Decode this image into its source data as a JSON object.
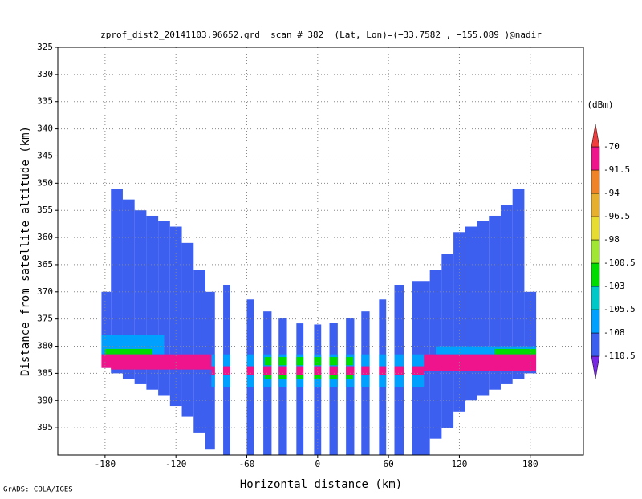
{
  "chart_data": {
    "type": "heatmap",
    "title": "zprof_dist2_20141103.96652.grd  scan # 382  (Lat, Lon)=(−33.7582 , −155.089 )@nadir",
    "xlabel": "Horizontal distance (km)",
    "ylabel": "Distance from satellite altitude (km)",
    "xlim": [
      -220,
      225
    ],
    "ylim": [
      325,
      400
    ],
    "xticks": [
      -180,
      -120,
      -60,
      0,
      60,
      120,
      180
    ],
    "yticks": [
      325,
      330,
      335,
      340,
      345,
      350,
      355,
      360,
      365,
      370,
      375,
      380,
      385,
      390,
      395
    ],
    "grid": true,
    "colorbar": {
      "label": "(dBm)",
      "levels": [
        -110.5,
        -108,
        -105.5,
        -103,
        -100.5,
        -98,
        -96.5,
        -94,
        -91.5,
        -70
      ],
      "colors": [
        "#7828e6",
        "#3c5ff0",
        "#00a0ff",
        "#00c8c8",
        "#00dc00",
        "#a0e632",
        "#e6dc32",
        "#e6af2d",
        "#f08228",
        "#f0148c",
        "#f03c3c"
      ]
    },
    "columns": [
      {
        "x": [
          -183,
          -175
        ],
        "y": [
          370,
          384
        ],
        "value": -109
      },
      {
        "x": [
          -175,
          -165
        ],
        "y": [
          351,
          385
        ],
        "value": -109
      },
      {
        "x": [
          -165,
          -155
        ],
        "y": [
          353,
          386
        ],
        "value": -109
      },
      {
        "x": [
          -155,
          -145
        ],
        "y": [
          355,
          387
        ],
        "value": -109
      },
      {
        "x": [
          -145,
          -135
        ],
        "y": [
          356,
          388
        ],
        "value": -109
      },
      {
        "x": [
          -135,
          -125
        ],
        "y": [
          357,
          389
        ],
        "value": -109
      },
      {
        "x": [
          -125,
          -115
        ],
        "y": [
          358,
          391
        ],
        "value": -109
      },
      {
        "x": [
          -115,
          -105
        ],
        "y": [
          361,
          393
        ],
        "value": -109
      },
      {
        "x": [
          -105,
          -95
        ],
        "y": [
          366,
          396
        ],
        "value": -109
      },
      {
        "x": [
          -95,
          -87
        ],
        "y": [
          370,
          399
        ],
        "value": -109
      },
      {
        "x": [
          -80,
          -74
        ],
        "y": [
          368.7,
          400
        ],
        "value": -109
      },
      {
        "x": [
          -60,
          -54
        ],
        "y": [
          371.4,
          400
        ],
        "value": -109
      },
      {
        "x": [
          -46,
          -39
        ],
        "y": [
          373.6,
          400
        ],
        "value": -109
      },
      {
        "x": [
          -33,
          -26
        ],
        "y": [
          374.9,
          400
        ],
        "value": -109
      },
      {
        "x": [
          -18,
          -12
        ],
        "y": [
          375.8,
          400
        ],
        "value": -109
      },
      {
        "x": [
          -3,
          3
        ],
        "y": [
          376,
          400
        ],
        "value": -109
      },
      {
        "x": [
          10,
          17
        ],
        "y": [
          375.7,
          400
        ],
        "value": -109
      },
      {
        "x": [
          24,
          31
        ],
        "y": [
          374.9,
          400
        ],
        "value": -109
      },
      {
        "x": [
          37,
          44
        ],
        "y": [
          373.6,
          400
        ],
        "value": -109
      },
      {
        "x": [
          52,
          58
        ],
        "y": [
          371.4,
          400
        ],
        "value": -109
      },
      {
        "x": [
          65,
          73
        ],
        "y": [
          368.7,
          400
        ],
        "value": -109
      },
      {
        "x": [
          80,
          95
        ],
        "y": [
          368,
          400
        ],
        "value": -109
      },
      {
        "x": [
          95,
          105
        ],
        "y": [
          366,
          397
        ],
        "value": -109
      },
      {
        "x": [
          105,
          115
        ],
        "y": [
          363,
          395
        ],
        "value": -109
      },
      {
        "x": [
          115,
          125
        ],
        "y": [
          359,
          392
        ],
        "value": -109
      },
      {
        "x": [
          125,
          135
        ],
        "y": [
          358,
          390
        ],
        "value": -109
      },
      {
        "x": [
          135,
          145
        ],
        "y": [
          357,
          389
        ],
        "value": -109
      },
      {
        "x": [
          145,
          155
        ],
        "y": [
          356,
          388
        ],
        "value": -109
      },
      {
        "x": [
          155,
          165
        ],
        "y": [
          354,
          387
        ],
        "value": -109
      },
      {
        "x": [
          165,
          175
        ],
        "y": [
          351,
          386
        ],
        "value": -109
      },
      {
        "x": [
          175,
          185
        ],
        "y": [
          370,
          385
        ],
        "value": -109
      }
    ],
    "layers": [
      {
        "x": [
          -185,
          -130
        ],
        "y": [
          378,
          381.5
        ],
        "value": -107
      },
      {
        "x": [
          -180,
          -140
        ],
        "y": [
          380.5,
          381.5
        ],
        "value": -102
      },
      {
        "x": [
          100,
          185
        ],
        "y": [
          380,
          381.5
        ],
        "value": -107
      },
      {
        "x": [
          150,
          185
        ],
        "y": [
          380.5,
          381.5
        ],
        "value": -102
      },
      {
        "x": [
          -90,
          90
        ],
        "y": [
          381.5,
          383.7
        ],
        "value": -106
      },
      {
        "x": [
          -45,
          30
        ],
        "y": [
          382,
          383.5
        ],
        "value": -102
      },
      {
        "x": [
          -90,
          90
        ],
        "y": [
          385.3,
          387.5
        ],
        "value": -106
      },
      {
        "x": [
          -45,
          30
        ],
        "y": [
          385.3,
          386
        ],
        "value": -102
      },
      {
        "x": [
          -185,
          -90
        ],
        "y": [
          381.5,
          384.3
        ],
        "value": -80
      },
      {
        "x": [
          -90,
          90
        ],
        "y": [
          383.7,
          385.3
        ],
        "value": -80
      },
      {
        "x": [
          90,
          185
        ],
        "y": [
          381.5,
          384.5
        ],
        "value": -80
      }
    ]
  },
  "footer": "GrADS: COLA/IGES"
}
